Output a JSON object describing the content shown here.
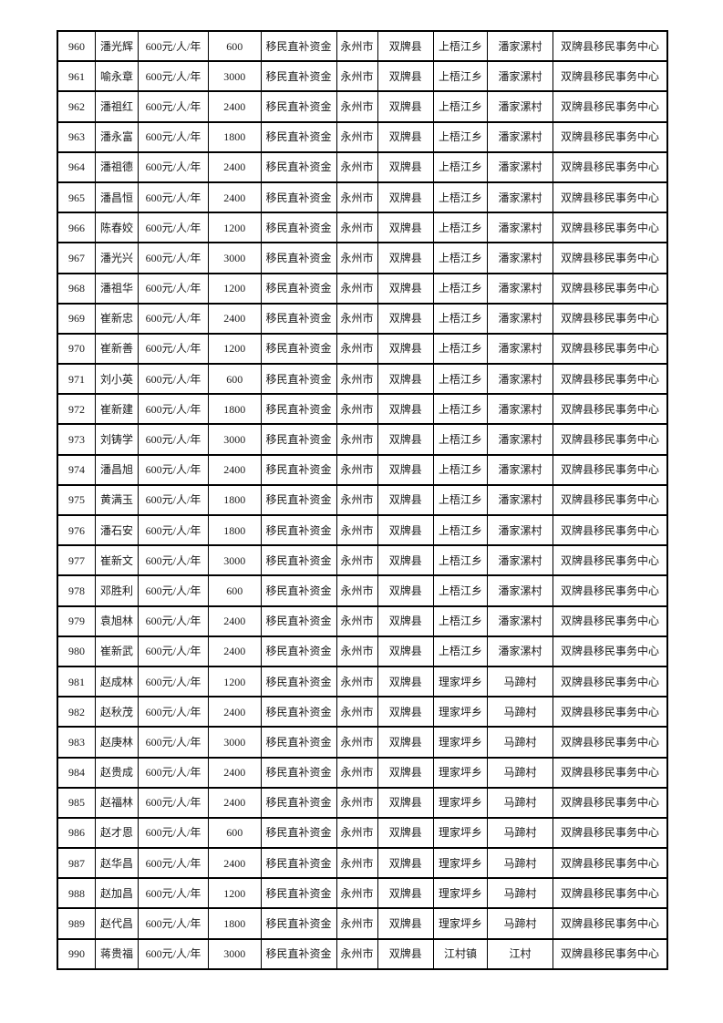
{
  "table": {
    "column_keys": [
      "no",
      "name",
      "standard",
      "amount",
      "fund",
      "city",
      "county",
      "township",
      "village",
      "agency"
    ],
    "constants": {
      "standard": "600元/人/年",
      "fund": "移民直补资金",
      "city": "永州市",
      "county": "双牌县",
      "agency": "双牌县移民事务中心"
    },
    "rows": [
      {
        "no": "960",
        "name": "潘光辉",
        "amount": "600",
        "township": "上梧江乡",
        "village": "潘家漯村"
      },
      {
        "no": "961",
        "name": "喻永章",
        "amount": "3000",
        "township": "上梧江乡",
        "village": "潘家漯村"
      },
      {
        "no": "962",
        "name": "潘祖红",
        "amount": "2400",
        "township": "上梧江乡",
        "village": "潘家漯村"
      },
      {
        "no": "963",
        "name": "潘永富",
        "amount": "1800",
        "township": "上梧江乡",
        "village": "潘家漯村"
      },
      {
        "no": "964",
        "name": "潘祖德",
        "amount": "2400",
        "township": "上梧江乡",
        "village": "潘家漯村"
      },
      {
        "no": "965",
        "name": "潘昌恒",
        "amount": "2400",
        "township": "上梧江乡",
        "village": "潘家漯村"
      },
      {
        "no": "966",
        "name": "陈春姣",
        "amount": "1200",
        "township": "上梧江乡",
        "village": "潘家漯村"
      },
      {
        "no": "967",
        "name": "潘光兴",
        "amount": "3000",
        "township": "上梧江乡",
        "village": "潘家漯村"
      },
      {
        "no": "968",
        "name": "潘祖华",
        "amount": "1200",
        "township": "上梧江乡",
        "village": "潘家漯村"
      },
      {
        "no": "969",
        "name": "崔新忠",
        "amount": "2400",
        "township": "上梧江乡",
        "village": "潘家漯村"
      },
      {
        "no": "970",
        "name": "崔新善",
        "amount": "1200",
        "township": "上梧江乡",
        "village": "潘家漯村"
      },
      {
        "no": "971",
        "name": "刘小英",
        "amount": "600",
        "township": "上梧江乡",
        "village": "潘家漯村"
      },
      {
        "no": "972",
        "name": "崔新建",
        "amount": "1800",
        "township": "上梧江乡",
        "village": "潘家漯村"
      },
      {
        "no": "973",
        "name": "刘铸学",
        "amount": "3000",
        "township": "上梧江乡",
        "village": "潘家漯村"
      },
      {
        "no": "974",
        "name": "潘昌旭",
        "amount": "2400",
        "township": "上梧江乡",
        "village": "潘家漯村"
      },
      {
        "no": "975",
        "name": "黄满玉",
        "amount": "1800",
        "township": "上梧江乡",
        "village": "潘家漯村"
      },
      {
        "no": "976",
        "name": "潘石安",
        "amount": "1800",
        "township": "上梧江乡",
        "village": "潘家漯村"
      },
      {
        "no": "977",
        "name": "崔新文",
        "amount": "3000",
        "township": "上梧江乡",
        "village": "潘家漯村"
      },
      {
        "no": "978",
        "name": "邓胜利",
        "amount": "600",
        "township": "上梧江乡",
        "village": "潘家漯村"
      },
      {
        "no": "979",
        "name": "袁旭林",
        "amount": "2400",
        "township": "上梧江乡",
        "village": "潘家漯村"
      },
      {
        "no": "980",
        "name": "崔新武",
        "amount": "2400",
        "township": "上梧江乡",
        "village": "潘家漯村"
      },
      {
        "no": "981",
        "name": "赵成林",
        "amount": "1200",
        "township": "理家坪乡",
        "village": "马蹄村"
      },
      {
        "no": "982",
        "name": "赵秋茂",
        "amount": "2400",
        "township": "理家坪乡",
        "village": "马蹄村"
      },
      {
        "no": "983",
        "name": "赵庚林",
        "amount": "3000",
        "township": "理家坪乡",
        "village": "马蹄村"
      },
      {
        "no": "984",
        "name": "赵贵成",
        "amount": "2400",
        "township": "理家坪乡",
        "village": "马蹄村"
      },
      {
        "no": "985",
        "name": "赵福林",
        "amount": "2400",
        "township": "理家坪乡",
        "village": "马蹄村"
      },
      {
        "no": "986",
        "name": "赵才恩",
        "amount": "600",
        "township": "理家坪乡",
        "village": "马蹄村"
      },
      {
        "no": "987",
        "name": "赵华昌",
        "amount": "2400",
        "township": "理家坪乡",
        "village": "马蹄村"
      },
      {
        "no": "988",
        "name": "赵加昌",
        "amount": "1200",
        "township": "理家坪乡",
        "village": "马蹄村"
      },
      {
        "no": "989",
        "name": "赵代昌",
        "amount": "1800",
        "township": "理家坪乡",
        "village": "马蹄村"
      },
      {
        "no": "990",
        "name": "蒋贵福",
        "amount": "3000",
        "township": "江村镇",
        "village": "江村"
      }
    ]
  }
}
